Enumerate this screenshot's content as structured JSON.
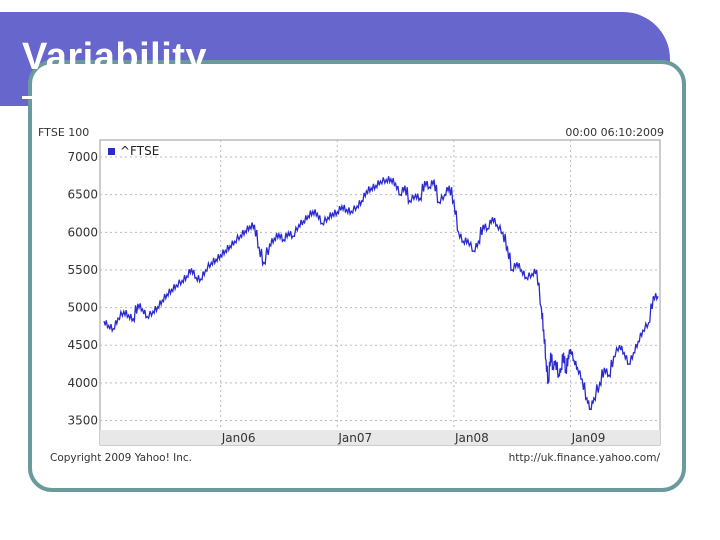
{
  "slide": {
    "title": "Variability"
  },
  "colors": {
    "title_bar": "#6666cc",
    "frame_border": "#6a9a9c",
    "series": "#2a2ad0",
    "grid": "#bbbbbb"
  },
  "chart_data": {
    "type": "line",
    "index_label": "FTSE 100",
    "timestamp": "00:00 06:10:2009",
    "legend": {
      "label": "^FTSE",
      "placement": "top-left"
    },
    "copyright": "Copyright 2009 Yahoo! Inc.",
    "source": "http://uk.finance.yahoo.com/",
    "grid": true,
    "xrange": [
      2005.0,
      2009.75
    ],
    "ylim": [
      3400,
      7200
    ],
    "xticks": [
      {
        "label": "Jan06",
        "value": 2006.0
      },
      {
        "label": "Jan07",
        "value": 2007.0
      },
      {
        "label": "Jan08",
        "value": 2008.0
      },
      {
        "label": "Jan09",
        "value": 2009.0
      }
    ],
    "yticks": [
      {
        "label": "3500",
        "value": 3500
      },
      {
        "label": "4000",
        "value": 4000
      },
      {
        "label": "4500",
        "value": 4500
      },
      {
        "label": "5000",
        "value": 5000
      },
      {
        "label": "5500",
        "value": 5500
      },
      {
        "label": "6000",
        "value": 6000
      },
      {
        "label": "6500",
        "value": 6500
      },
      {
        "label": "7000",
        "value": 7000
      }
    ],
    "series": [
      {
        "x": [
          2005.0,
          2005.04,
          2005.08,
          2005.12,
          2005.17,
          2005.21,
          2005.25,
          2005.29,
          2005.33,
          2005.37,
          2005.42,
          2005.46,
          2005.5,
          2005.54,
          2005.58,
          2005.62,
          2005.67,
          2005.71,
          2005.75,
          2005.79,
          2005.83,
          2005.87,
          2005.92,
          2005.96,
          2006.0,
          2006.04,
          2006.08,
          2006.12,
          2006.17,
          2006.21,
          2006.25,
          2006.29,
          2006.33,
          2006.37,
          2006.42,
          2006.46,
          2006.5,
          2006.54,
          2006.58,
          2006.62,
          2006.67,
          2006.71,
          2006.75,
          2006.79,
          2006.83,
          2006.87,
          2006.92,
          2006.96,
          2007.0,
          2007.04,
          2007.08,
          2007.12,
          2007.17,
          2007.21,
          2007.25,
          2007.29,
          2007.33,
          2007.37,
          2007.42,
          2007.46,
          2007.5,
          2007.54,
          2007.58,
          2007.62,
          2007.67,
          2007.71,
          2007.75,
          2007.79,
          2007.83,
          2007.87,
          2007.92,
          2007.96,
          2008.0,
          2008.04,
          2008.08,
          2008.12,
          2008.17,
          2008.21,
          2008.25,
          2008.29,
          2008.33,
          2008.37,
          2008.42,
          2008.46,
          2008.5,
          2008.54,
          2008.58,
          2008.62,
          2008.67,
          2008.71,
          2008.75,
          2008.77,
          2008.79,
          2008.81,
          2008.83,
          2008.85,
          2008.87,
          2008.9,
          2008.92,
          2008.94,
          2008.96,
          2008.98,
          2009.0,
          2009.03,
          2009.06,
          2009.1,
          2009.14,
          2009.17,
          2009.2,
          2009.25,
          2009.29,
          2009.33,
          2009.37,
          2009.42,
          2009.46,
          2009.5,
          2009.54,
          2009.58,
          2009.62,
          2009.67,
          2009.71,
          2009.75
        ],
        "y": [
          4820,
          4760,
          4720,
          4860,
          4950,
          4900,
          4850,
          5050,
          4980,
          4880,
          4950,
          5010,
          5100,
          5180,
          5240,
          5300,
          5360,
          5420,
          5520,
          5400,
          5380,
          5500,
          5600,
          5640,
          5700,
          5760,
          5820,
          5880,
          5960,
          6020,
          6080,
          6100,
          5800,
          5600,
          5840,
          5920,
          5980,
          5900,
          6000,
          5950,
          6100,
          6150,
          6220,
          6280,
          6250,
          6120,
          6200,
          6250,
          6270,
          6350,
          6300,
          6280,
          6350,
          6420,
          6550,
          6590,
          6620,
          6680,
          6700,
          6710,
          6650,
          6500,
          6620,
          6420,
          6500,
          6450,
          6680,
          6600,
          6700,
          6400,
          6500,
          6620,
          6420,
          6000,
          5880,
          5900,
          5750,
          5880,
          6100,
          6050,
          6200,
          6100,
          6000,
          5800,
          5500,
          5600,
          5500,
          5400,
          5450,
          5500,
          5000,
          4700,
          4300,
          4000,
          4400,
          4200,
          4300,
          4100,
          4200,
          4400,
          4150,
          4350,
          4450,
          4300,
          4200,
          4050,
          3800,
          3650,
          3800,
          4000,
          4200,
          4100,
          4350,
          4500,
          4400,
          4250,
          4400,
          4550,
          4700,
          4800,
          5150,
          5150
        ]
      }
    ]
  }
}
